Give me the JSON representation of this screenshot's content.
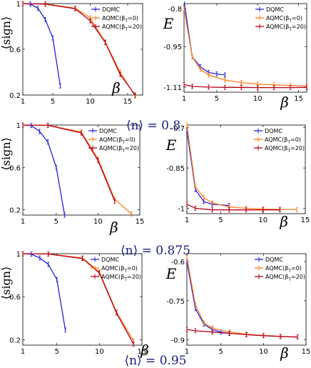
{
  "colors": {
    "DQMC": "#2222dd",
    "AQMC_b0": "#ff7f1e",
    "AQMC_b20": "#b3001b",
    "nlabel": "#1a1a80"
  },
  "row_labels": [
    "⟨n⟩ = 0.8",
    "⟨n⟩ = 0.875",
    "⟨n⟩ = 0.95"
  ],
  "chart_data": [
    {
      "type": "line",
      "row": 0,
      "col": 0,
      "xlabel": "β",
      "ylabel": "⟨sign⟩",
      "xlim": [
        1,
        17
      ],
      "ylim": [
        0.2,
        1.0
      ],
      "xticks": [
        1,
        5,
        10,
        15
      ],
      "yticks": [
        0.2,
        0.6,
        1
      ],
      "xtick_labels": [
        "1",
        "5",
        "10",
        "15"
      ],
      "ytick_labels": [
        "0.2",
        "0.6",
        "1"
      ],
      "legend": "top-right",
      "series": [
        {
          "name": "DQMC",
          "x": [
            1,
            2,
            3,
            4,
            5,
            6
          ],
          "y": [
            1.0,
            0.995,
            0.96,
            0.86,
            0.7,
            0.28
          ]
        },
        {
          "name": "AQMC(βT=0)",
          "x": [
            1,
            4,
            8,
            10,
            12,
            14,
            16
          ],
          "y": [
            1.0,
            0.997,
            0.96,
            0.875,
            0.665,
            0.4,
            0.19
          ]
        },
        {
          "name": "AQMC(βT=20)",
          "x": [
            1,
            4,
            8,
            10,
            12,
            14,
            16
          ],
          "y": [
            1.0,
            0.995,
            0.955,
            0.85,
            0.66,
            0.38,
            0.2
          ]
        }
      ]
    },
    {
      "type": "line",
      "row": 0,
      "col": 1,
      "xlabel": "β",
      "ylabel": "E",
      "xlim": [
        1,
        16
      ],
      "ylim": [
        -1.13,
        -0.78
      ],
      "xticks": [
        1,
        5,
        10,
        15
      ],
      "yticks": [
        -1.11,
        -0.95,
        -0.8
      ],
      "xtick_labels": [
        "1",
        "5",
        "10",
        "15"
      ],
      "ytick_labels": [
        "-1.11",
        "-0.95",
        "-0.8"
      ],
      "legend": "top-right",
      "series": [
        {
          "name": "DQMC",
          "x": [
            1,
            2,
            3,
            4,
            5,
            6
          ],
          "y": [
            -0.77,
            -0.99,
            -1.03,
            -1.052,
            -1.058,
            -1.062
          ]
        },
        {
          "name": "AQMC(βT=0)",
          "x": [
            1,
            2,
            3,
            4,
            6,
            8,
            10,
            12,
            14,
            16
          ],
          "y": [
            -0.8,
            -0.99,
            -1.04,
            -1.062,
            -1.082,
            -1.092,
            -1.098,
            -1.101,
            -1.104,
            -1.106
          ]
        },
        {
          "name": "AQMC(βT=20)",
          "x": [
            1,
            2,
            4,
            6,
            8,
            10,
            12,
            14,
            16
          ],
          "y": [
            -1.1,
            -1.107,
            -1.11,
            -1.111,
            -1.111,
            -1.112,
            -1.112,
            -1.112,
            -1.111
          ]
        }
      ]
    },
    {
      "type": "line",
      "row": 1,
      "col": 0,
      "xlabel": "β",
      "ylabel": "⟨sign⟩",
      "xlim": [
        1,
        15
      ],
      "ylim": [
        0.15,
        1.0
      ],
      "xticks": [
        1,
        5,
        10,
        15
      ],
      "yticks": [
        0.2,
        0.6,
        1
      ],
      "xtick_labels": [
        "1",
        "5",
        "10",
        "15"
      ],
      "ytick_labels": [
        "0.2",
        "0.6",
        "1"
      ],
      "legend": "top-right",
      "series": [
        {
          "name": "DQMC",
          "x": [
            1,
            2,
            3,
            4,
            5,
            6
          ],
          "y": [
            1.0,
            0.995,
            0.94,
            0.84,
            0.6,
            0.15
          ]
        },
        {
          "name": "AQMC(βT=0)",
          "x": [
            1,
            4,
            8,
            10,
            12,
            14
          ],
          "y": [
            1.0,
            0.998,
            0.935,
            0.68,
            0.3,
            0.16
          ]
        },
        {
          "name": "AQMC(βT=20)",
          "x": [
            1,
            4,
            8,
            10,
            12
          ],
          "y": [
            1.0,
            0.997,
            0.925,
            0.665,
            0.28
          ]
        }
      ]
    },
    {
      "type": "line",
      "row": 1,
      "col": 1,
      "xlabel": "β",
      "ylabel": "E",
      "xlim": [
        1,
        15
      ],
      "ylim": [
        -1.02,
        -0.69
      ],
      "xticks": [
        1,
        5,
        10,
        15
      ],
      "yticks": [
        -1,
        -0.85,
        -0.7
      ],
      "xtick_labels": [
        "1",
        "5",
        "10",
        "15"
      ],
      "ytick_labels": [
        "-1",
        "-0.85",
        "-0.7"
      ],
      "legend": "top-right",
      "series": [
        {
          "name": "DQMC",
          "x": [
            1,
            2,
            3,
            4,
            6
          ],
          "y": [
            -0.71,
            -0.93,
            -0.975,
            -0.985,
            -0.99
          ]
        },
        {
          "name": "AQMC(βT=0)",
          "x": [
            1,
            2,
            3,
            4,
            6,
            8,
            10,
            12,
            14
          ],
          "y": [
            -0.69,
            -0.92,
            -0.96,
            -0.98,
            -0.995,
            -1.0,
            -1.003,
            -1.004,
            -1.005
          ]
        },
        {
          "name": "AQMC(βT=20)",
          "x": [
            1,
            2,
            4,
            6,
            8,
            10,
            12
          ],
          "y": [
            -0.985,
            -1.0,
            -1.006,
            -1.006,
            -1.006,
            -1.006,
            -1.006
          ]
        }
      ]
    },
    {
      "type": "line",
      "row": 2,
      "col": 0,
      "xlabel": "β",
      "ylabel": "⟨sign⟩",
      "xlim": [
        1,
        15
      ],
      "ylim": [
        0.15,
        1.0
      ],
      "xticks": [
        1,
        5,
        10,
        15
      ],
      "yticks": [
        0.2,
        0.6,
        1
      ],
      "xtick_labels": [
        "1",
        "5",
        "10",
        "15"
      ],
      "ytick_labels": [
        "0.2",
        "0.6",
        "1"
      ],
      "legend": "top-right",
      "series": [
        {
          "name": "DQMC",
          "x": [
            1,
            2,
            3,
            4,
            5,
            6
          ],
          "y": [
            1.0,
            0.995,
            0.96,
            0.9,
            0.76,
            0.29
          ]
        },
        {
          "name": "AQMC(βT=0)",
          "x": [
            1,
            4,
            8,
            10,
            12,
            14
          ],
          "y": [
            1.0,
            0.998,
            0.96,
            0.83,
            0.46,
            0.19
          ]
        },
        {
          "name": "AQMC(βT=20)",
          "x": [
            1,
            4,
            8,
            10,
            12,
            14
          ],
          "y": [
            1.0,
            0.997,
            0.955,
            0.82,
            0.45,
            0.16
          ]
        }
      ]
    },
    {
      "type": "line",
      "row": 2,
      "col": 1,
      "xlabel": "β",
      "ylabel": "E",
      "xlim": [
        1,
        15
      ],
      "ylim": [
        -0.92,
        -0.57
      ],
      "xticks": [
        1,
        5,
        10,
        15
      ],
      "yticks": [
        -0.9,
        -0.75,
        -0.6
      ],
      "xtick_labels": [
        "1",
        "5",
        "10",
        "15"
      ],
      "ytick_labels": [
        "-0.9",
        "-0.75",
        "-0.6"
      ],
      "legend": "top-right",
      "series": [
        {
          "name": "DQMC",
          "x": [
            1,
            2,
            3,
            4,
            5,
            6
          ],
          "y": [
            -0.6,
            -0.78,
            -0.84,
            -0.86,
            -0.87,
            -0.875
          ]
        },
        {
          "name": "AQMC(βT=0)",
          "x": [
            1,
            2,
            3,
            4,
            6,
            8,
            10,
            12,
            14
          ],
          "y": [
            -0.585,
            -0.765,
            -0.835,
            -0.855,
            -0.87,
            -0.878,
            -0.883,
            -0.886,
            -0.889
          ]
        },
        {
          "name": "AQMC(βT=20)",
          "x": [
            1,
            2,
            4,
            6,
            8,
            10,
            12,
            14
          ],
          "y": [
            -0.86,
            -0.865,
            -0.87,
            -0.875,
            -0.88,
            -0.884,
            -0.887,
            -0.889
          ]
        }
      ]
    }
  ]
}
